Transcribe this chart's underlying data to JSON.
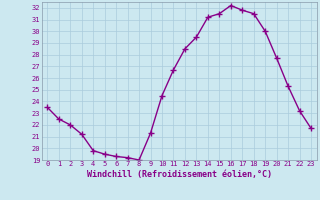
{
  "x": [
    0,
    1,
    2,
    3,
    4,
    5,
    6,
    7,
    8,
    9,
    10,
    11,
    12,
    13,
    14,
    15,
    16,
    17,
    18,
    19,
    20,
    21,
    22,
    23
  ],
  "y": [
    23.5,
    22.5,
    22.0,
    21.2,
    19.8,
    19.5,
    19.3,
    19.2,
    19.0,
    21.3,
    24.5,
    26.7,
    28.5,
    29.5,
    31.2,
    31.5,
    32.2,
    31.8,
    31.5,
    30.0,
    27.7,
    25.3,
    23.2,
    21.7
  ],
  "line_color": "#880088",
  "marker": "+",
  "markersize": 4,
  "linewidth": 1.0,
  "xlabel": "Windchill (Refroidissement éolien,°C)",
  "xlim": [
    -0.5,
    23.5
  ],
  "ylim": [
    19,
    32.5
  ],
  "yticks": [
    19,
    20,
    21,
    22,
    23,
    24,
    25,
    26,
    27,
    28,
    29,
    30,
    31,
    32
  ],
  "xticks": [
    0,
    1,
    2,
    3,
    4,
    5,
    6,
    7,
    8,
    9,
    10,
    11,
    12,
    13,
    14,
    15,
    16,
    17,
    18,
    19,
    20,
    21,
    22,
    23
  ],
  "bg_color": "#cce8f0",
  "grid_color": "#aaccdd",
  "tick_label_color": "#880088",
  "axis_label_color": "#880088",
  "tick_fontsize": 5.0,
  "xlabel_fontsize": 6.0
}
